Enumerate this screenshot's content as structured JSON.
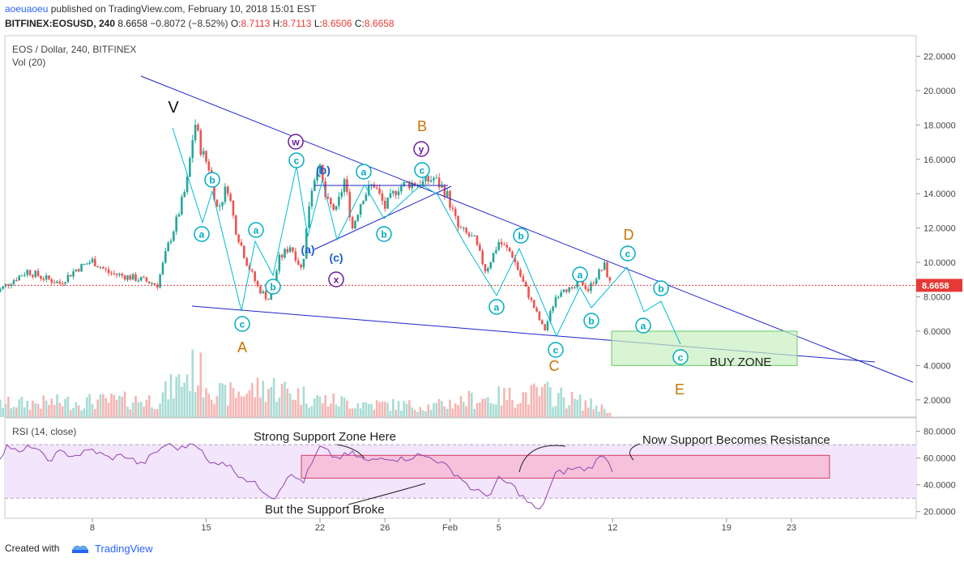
{
  "header": {
    "user": "aoeuaoeu",
    "published_text": " published on TradingView.com, February 10, 2018 15:01 EST",
    "symbol": "BITFINEX:EOSUSD, 240",
    "last": "8.6658",
    "change": "−0.8072 (−8.52%)",
    "o_label": "O:",
    "o_val": "8.7113",
    "h_label": "H:",
    "h_val": "8.7113",
    "l_label": "L:",
    "l_val": "8.6506",
    "c_label": "C:",
    "c_val": "8.6658"
  },
  "pane": {
    "title": "EOS / Dollar, 240, BITFINEX",
    "vol": "Vol (20)",
    "rsi": "RSI (14, close)"
  },
  "price_tag": "8.6658",
  "colors": {
    "up": "#26a69a",
    "down": "#ef5350",
    "trend": "#1e22c8",
    "wave": "#00bcd4",
    "orange": "#c77400",
    "purple": "#6a1b9a",
    "rsi": "#8e44ad",
    "zone_green": "#66cc66",
    "zone_pink": "#e8457a"
  },
  "chart_data": [
    {
      "type": "candlestick",
      "title": "EOS / Dollar, 240, BITFINEX",
      "ylim": [
        1,
        23.2
      ],
      "y_ticks": [
        "2.0000",
        "4.0000",
        "6.0000",
        "8.0000",
        "10.0000",
        "12.0000",
        "14.0000",
        "16.0000",
        "18.0000",
        "20.0000",
        "22.0000"
      ],
      "x_ticks": [
        "8",
        "15",
        "22",
        "26",
        "Feb",
        "5",
        "12",
        "19",
        "23"
      ],
      "close_path": [
        [
          1,
          8.2
        ],
        [
          2,
          8.9
        ],
        [
          3,
          9.5
        ],
        [
          4,
          9.1
        ],
        [
          5,
          8.8
        ],
        [
          6,
          9.6
        ],
        [
          7,
          10.1
        ],
        [
          8,
          9.4
        ],
        [
          9,
          9.2
        ],
        [
          10,
          9.0
        ],
        [
          11,
          8.7
        ],
        [
          11.6,
          10.8
        ],
        [
          12.2,
          12.5
        ],
        [
          12.8,
          14.5
        ],
        [
          13.3,
          18.2
        ],
        [
          13.7,
          16.5
        ],
        [
          14.2,
          15.5
        ],
        [
          14.7,
          13.0
        ],
        [
          15.3,
          14.5
        ],
        [
          15.8,
          12.0
        ],
        [
          16.5,
          10.0
        ],
        [
          17.2,
          8.5
        ],
        [
          17.9,
          7.8
        ],
        [
          18.5,
          10.2
        ],
        [
          19.2,
          11.0
        ],
        [
          19.9,
          9.5
        ],
        [
          20.4,
          14.0
        ],
        [
          20.9,
          15.8
        ],
        [
          21.4,
          13.5
        ],
        [
          22,
          13.0
        ],
        [
          22.5,
          14.8
        ],
        [
          23,
          12.0
        ],
        [
          23.6,
          13.8
        ],
        [
          24.3,
          14.6
        ],
        [
          25,
          13.2
        ],
        [
          25.8,
          14.4
        ],
        [
          26.5,
          14.6
        ],
        [
          27.3,
          14.6
        ],
        [
          28,
          14.9
        ],
        [
          28.8,
          14.0
        ],
        [
          29.5,
          12.0
        ],
        [
          30.5,
          11.3
        ],
        [
          31.2,
          9.5
        ],
        [
          32,
          11.2
        ],
        [
          32.8,
          10.5
        ],
        [
          33.5,
          8.8
        ],
        [
          34.2,
          7.3
        ],
        [
          34.8,
          6.0
        ],
        [
          35.5,
          8.0
        ],
        [
          36,
          8.6
        ],
        [
          36.5,
          8.3
        ],
        [
          37,
          9.0
        ],
        [
          37.5,
          8.4
        ],
        [
          38,
          9.2
        ],
        [
          38.5,
          9.8
        ],
        [
          38.9,
          8.6
        ]
      ],
      "volume_peak": [
        [
          1,
          0.6
        ],
        [
          11,
          0.8
        ],
        [
          13.3,
          2.2
        ],
        [
          15,
          1.0
        ],
        [
          18,
          1.4
        ],
        [
          21,
          0.8
        ],
        [
          24,
          0.6
        ],
        [
          28,
          0.5
        ],
        [
          30,
          0.8
        ],
        [
          35,
          1.1
        ],
        [
          39,
          0.3
        ]
      ],
      "annotations": {
        "wave_letters": [
          "V",
          "A",
          "B",
          "C",
          "D",
          "E"
        ],
        "circled": [
          "a",
          "b",
          "c",
          "w",
          "y",
          "x"
        ],
        "sub_waves": [
          "(a)",
          "(b)",
          "(c)"
        ],
        "zone_label": "BUY ZONE",
        "buy_zone": [
          4.0,
          6.0
        ]
      }
    },
    {
      "type": "line",
      "title": "RSI (14, close)",
      "ylim": [
        15,
        90
      ],
      "y_ticks": [
        "20.0000",
        "40.0000",
        "60.0000",
        "80.0000"
      ],
      "bands": [
        30,
        70
      ],
      "values": [
        [
          1,
          55
        ],
        [
          1.8,
          70
        ],
        [
          2.5,
          63
        ],
        [
          3.3,
          70
        ],
        [
          4.2,
          58
        ],
        [
          5,
          64
        ],
        [
          6,
          62
        ],
        [
          7,
          66
        ],
        [
          8,
          60
        ],
        [
          9,
          62
        ],
        [
          10,
          55
        ],
        [
          11.5,
          70
        ],
        [
          12.5,
          67
        ],
        [
          13.3,
          73
        ],
        [
          14.2,
          55
        ],
        [
          15,
          58
        ],
        [
          16,
          48
        ],
        [
          17.3,
          38
        ],
        [
          18.2,
          30
        ],
        [
          19,
          47
        ],
        [
          20,
          43
        ],
        [
          21,
          68
        ],
        [
          22,
          60
        ],
        [
          23,
          63
        ],
        [
          24,
          57
        ],
        [
          25,
          61
        ],
        [
          26,
          59
        ],
        [
          27,
          62
        ],
        [
          28,
          60
        ],
        [
          29.5,
          47
        ],
        [
          30.5,
          35
        ],
        [
          31.5,
          33
        ],
        [
          32,
          44
        ],
        [
          32.8,
          40
        ],
        [
          33.7,
          28
        ],
        [
          34.5,
          20
        ],
        [
          35.5,
          48
        ],
        [
          36.5,
          52
        ],
        [
          37.5,
          52
        ],
        [
          38.5,
          63
        ],
        [
          38.9,
          52
        ],
        [
          39.2,
          50
        ]
      ],
      "annotations": [
        "Strong Support Zone Here",
        "But the Support Broke",
        "Now Support Becomes Resistance"
      ],
      "zone": [
        45,
        62
      ]
    }
  ],
  "footer": {
    "created": "Created with",
    "brand": "TradingView"
  }
}
